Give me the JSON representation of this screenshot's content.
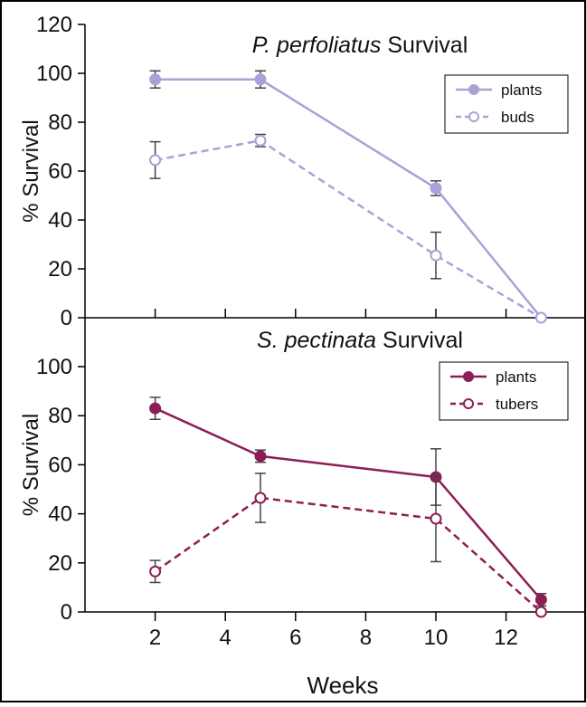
{
  "chart_data": [
    {
      "type": "line",
      "title_italic": "P. perfoliatus",
      "title_rest": " Survival",
      "xlabel": "Weeks",
      "ylabel": "% Survival",
      "ylim": [
        0,
        120
      ],
      "yticks": [
        0,
        20,
        40,
        60,
        80,
        100,
        120
      ],
      "xlim": [
        0,
        14
      ],
      "x": [
        2,
        5,
        10,
        13
      ],
      "color": "#A9A2D6",
      "legend": "top-right",
      "grid": false,
      "series": [
        {
          "name": "plants",
          "style": "solid",
          "marker": "filled",
          "values": [
            97.5,
            97.5,
            53,
            0
          ],
          "errors": [
            3.5,
            3.5,
            3,
            0
          ]
        },
        {
          "name": "buds",
          "style": "dashed",
          "marker": "open",
          "values": [
            64.5,
            72.5,
            25.5,
            0
          ],
          "errors": [
            7.5,
            2.5,
            9.5,
            0
          ]
        }
      ]
    },
    {
      "type": "line",
      "title_italic": "S. pectinata",
      "title_rest": " Survival",
      "xlabel": "Weeks",
      "ylabel": "% Survival",
      "ylim": [
        0,
        120
      ],
      "yticks": [
        0,
        20,
        40,
        60,
        80,
        100
      ],
      "xlim": [
        0,
        14
      ],
      "x": [
        2,
        5,
        10,
        13
      ],
      "xticks": [
        2,
        4,
        6,
        8,
        10,
        12
      ],
      "color": "#8C1E55",
      "legend": "top-right",
      "grid": false,
      "series": [
        {
          "name": "plants",
          "style": "solid",
          "marker": "filled",
          "values": [
            83,
            63.5,
            55,
            5
          ],
          "errors": [
            4.5,
            2.5,
            11.5,
            2.5
          ]
        },
        {
          "name": "tubers",
          "style": "dashed",
          "marker": "open",
          "values": [
            16.5,
            46.5,
            38,
            0
          ],
          "errors": [
            4.5,
            10,
            17.5,
            0
          ]
        }
      ]
    }
  ]
}
